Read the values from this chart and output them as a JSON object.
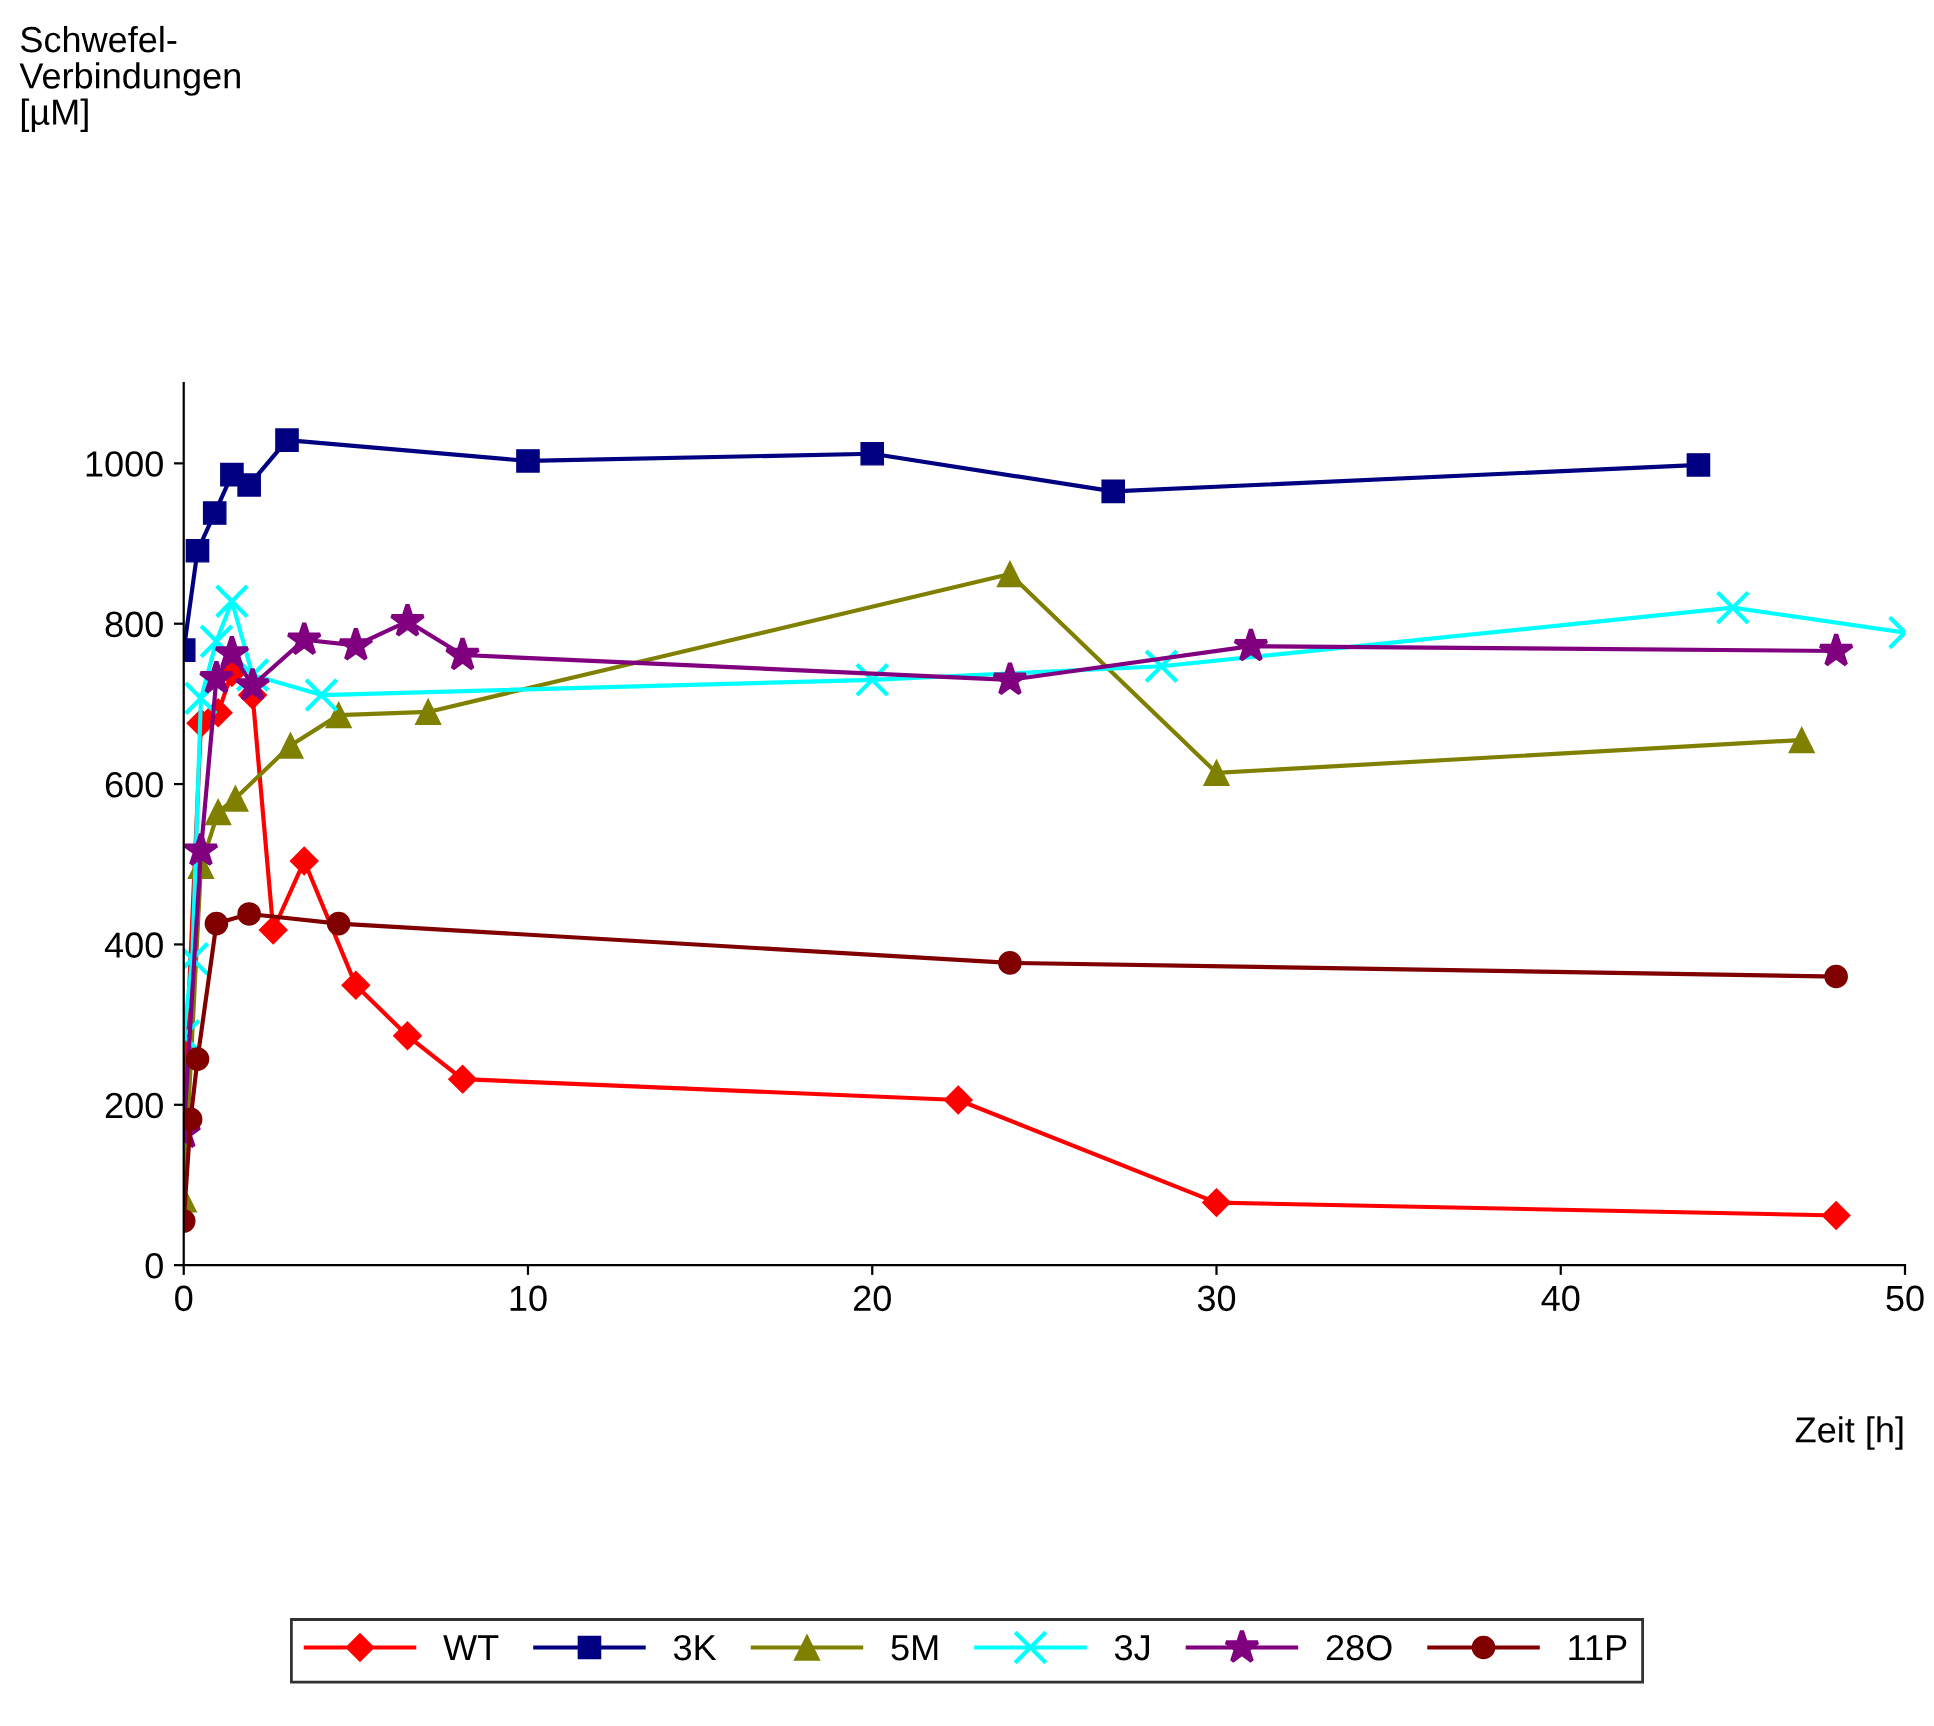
{
  "chart_data": {
    "type": "line",
    "annotations": [
      "Schwefel-\nVerbindungen\n[µM]"
    ],
    "xlabel": "Zeit [h]",
    "xlim": [
      0,
      50
    ],
    "xticks": [
      0,
      10,
      20,
      30,
      40,
      50
    ],
    "ylim": [
      0,
      1100
    ],
    "yticks": [
      0,
      200,
      400,
      600,
      800,
      1000
    ],
    "grid": false,
    "legend": "bottom",
    "line_style": "solid",
    "series": [
      {
        "name": "WT",
        "color": "#ff0000",
        "marker": "diamond",
        "x": [
          0,
          0.5,
          1.0,
          1.4,
          2.0,
          2.6,
          3.5,
          5.0,
          6.5,
          8.1,
          22.5,
          30,
          48
        ],
        "values": [
          190,
          676,
          689,
          739,
          711,
          418,
          504,
          349,
          286,
          232,
          206,
          78,
          62
        ]
      },
      {
        "name": "3K",
        "color": "#000080",
        "marker": "square",
        "x": [
          0,
          0.4,
          0.9,
          1.4,
          1.9,
          3.0,
          10,
          20,
          27,
          44
        ],
        "values": [
          767,
          891,
          938,
          986,
          973,
          1029,
          1003,
          1012,
          965,
          998
        ]
      },
      {
        "name": "5M",
        "color": "#808000",
        "marker": "triangle",
        "x": [
          0,
          0.5,
          1.0,
          1.5,
          3.1,
          4.5,
          7.1,
          24,
          30,
          47
        ],
        "values": [
          82,
          498,
          565,
          582,
          648,
          686,
          690,
          862,
          614,
          655
        ]
      },
      {
        "name": "3J",
        "color": "#00ffff",
        "marker": "cross",
        "x": [
          0,
          0.25,
          0.5,
          0.95,
          1.4,
          2.0,
          4.0,
          20,
          28.4,
          45,
          50
        ],
        "values": [
          286,
          382,
          707,
          778,
          828,
          736,
          711,
          730,
          747,
          820,
          789
        ]
      },
      {
        "name": "28O",
        "color": "#800080",
        "marker": "star",
        "x": [
          0,
          0.5,
          0.95,
          1.4,
          2.0,
          3.5,
          5.0,
          6.5,
          8.1,
          24,
          31,
          48
        ],
        "values": [
          165,
          517,
          732,
          763,
          723,
          780,
          773,
          803,
          761,
          730,
          772,
          766
        ]
      },
      {
        "name": "11P",
        "color": "#800000",
        "marker": "circle",
        "x": [
          0,
          0.2,
          0.4,
          0.95,
          1.9,
          4.5,
          24,
          48
        ],
        "values": [
          55,
          182,
          257,
          426,
          438,
          426,
          377,
          360
        ]
      }
    ]
  }
}
